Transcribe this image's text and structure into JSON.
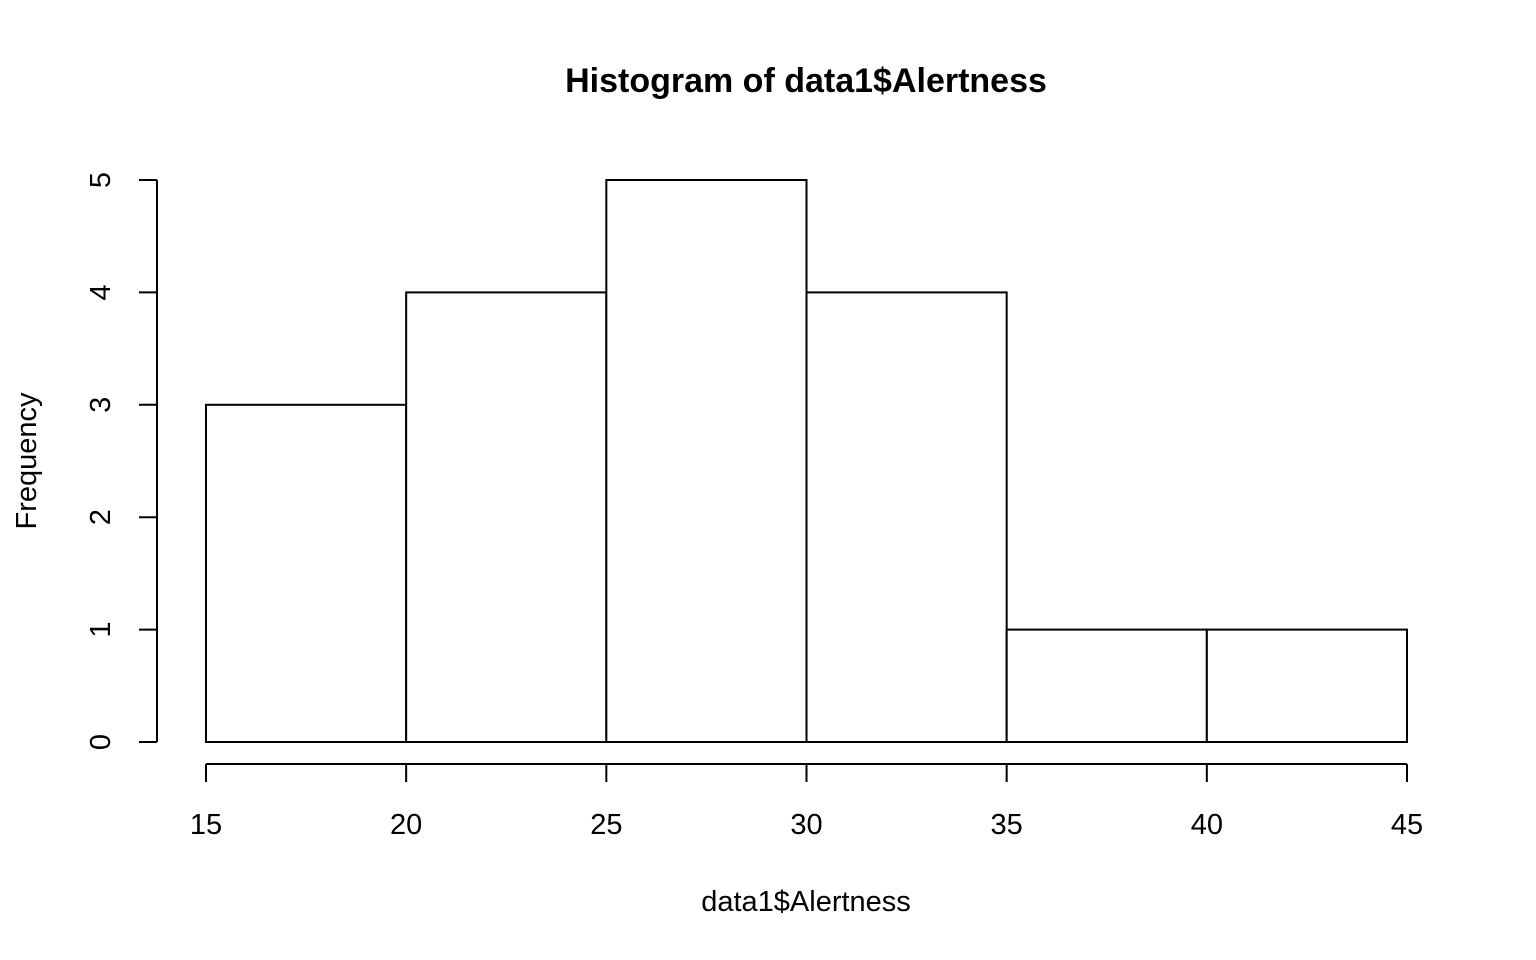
{
  "chart_data": {
    "type": "bar",
    "title": "Histogram of data1$Alertness",
    "xlabel": "data1$Alertness",
    "ylabel": "Frequency",
    "bins": [
      {
        "from": 15,
        "to": 20,
        "count": 3
      },
      {
        "from": 20,
        "to": 25,
        "count": 4
      },
      {
        "from": 25,
        "to": 30,
        "count": 5
      },
      {
        "from": 30,
        "to": 35,
        "count": 4
      },
      {
        "from": 35,
        "to": 40,
        "count": 1
      },
      {
        "from": 40,
        "to": 45,
        "count": 1
      }
    ],
    "xlim": [
      15,
      45
    ],
    "ylim": [
      0,
      5
    ],
    "xticks": [
      15,
      20,
      25,
      30,
      35,
      40,
      45
    ],
    "yticks": [
      0,
      1,
      2,
      3,
      4,
      5
    ],
    "xtick_labels": [
      "15",
      "20",
      "25",
      "30",
      "35",
      "40",
      "45"
    ],
    "ytick_labels": [
      "0",
      "1",
      "2",
      "3",
      "4",
      "5"
    ],
    "bar_fill": "#ffffff",
    "bar_stroke": "#000000",
    "grid": false,
    "legend": "none"
  }
}
